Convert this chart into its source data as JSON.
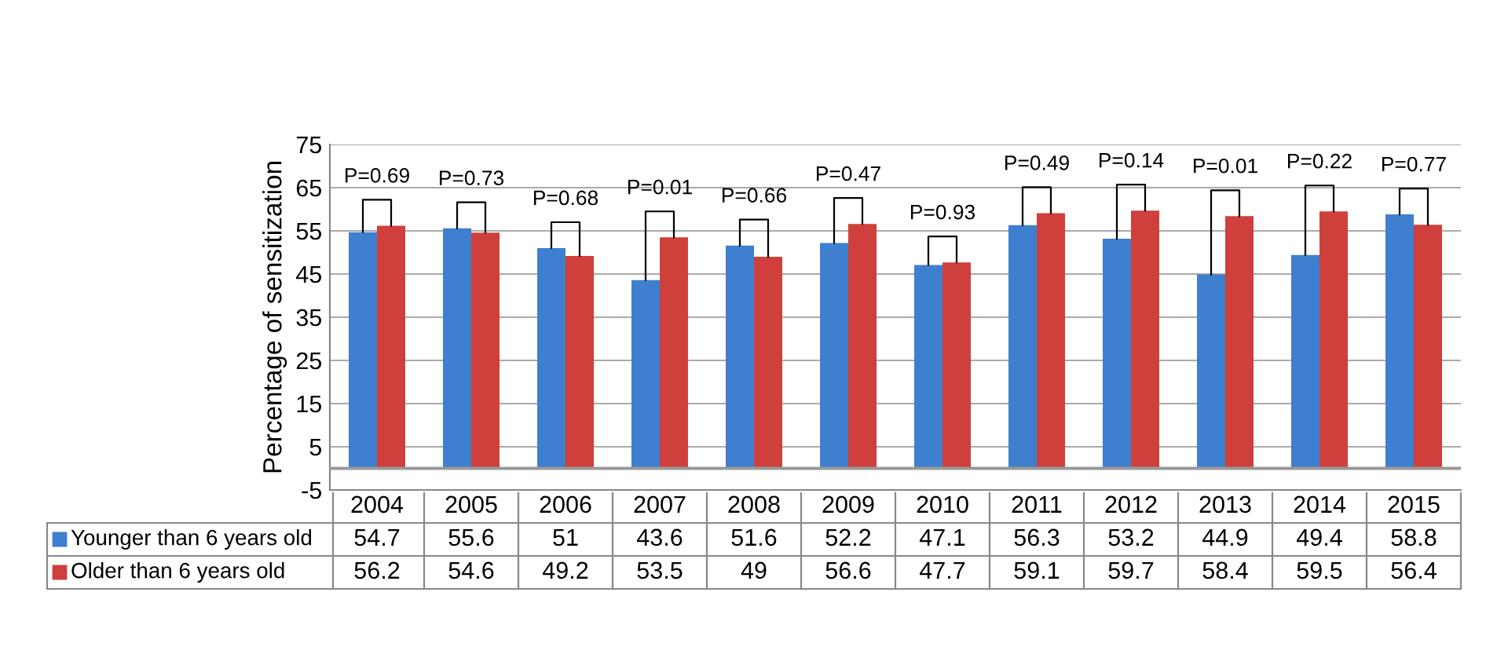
{
  "chart_data": {
    "type": "bar",
    "ylabel": "Percentage of sensitization",
    "categories": [
      "2004",
      "2005",
      "2006",
      "2007",
      "2008",
      "2009",
      "2010",
      "2011",
      "2012",
      "2013",
      "2014",
      "2015"
    ],
    "series": [
      {
        "name": "Younger than 6 years old",
        "color": "#3f7fcf",
        "values": [
          54.7,
          55.6,
          51,
          43.6,
          51.6,
          52.2,
          47.1,
          56.3,
          53.2,
          44.9,
          49.4,
          58.8
        ]
      },
      {
        "name": "Older than 6 years old",
        "color": "#cf3f3c",
        "values": [
          56.2,
          54.6,
          49.2,
          53.5,
          49,
          56.6,
          47.7,
          59.1,
          59.7,
          58.4,
          59.5,
          56.4
        ]
      }
    ],
    "ylim": [
      -5,
      75
    ],
    "yticks": [
      -5,
      5,
      15,
      25,
      35,
      45,
      55,
      65,
      75
    ],
    "grid": "y",
    "data_labels": true,
    "legend": "bottom",
    "annotations": [
      "P=0.69",
      "P=0.73",
      "P=0.68",
      "P=0.01",
      "P=0.66",
      "P=0.47",
      "P=0.93",
      "P=0.49",
      "P=0.14",
      "P=0.01",
      "P=0.22",
      "P=0.77"
    ]
  }
}
